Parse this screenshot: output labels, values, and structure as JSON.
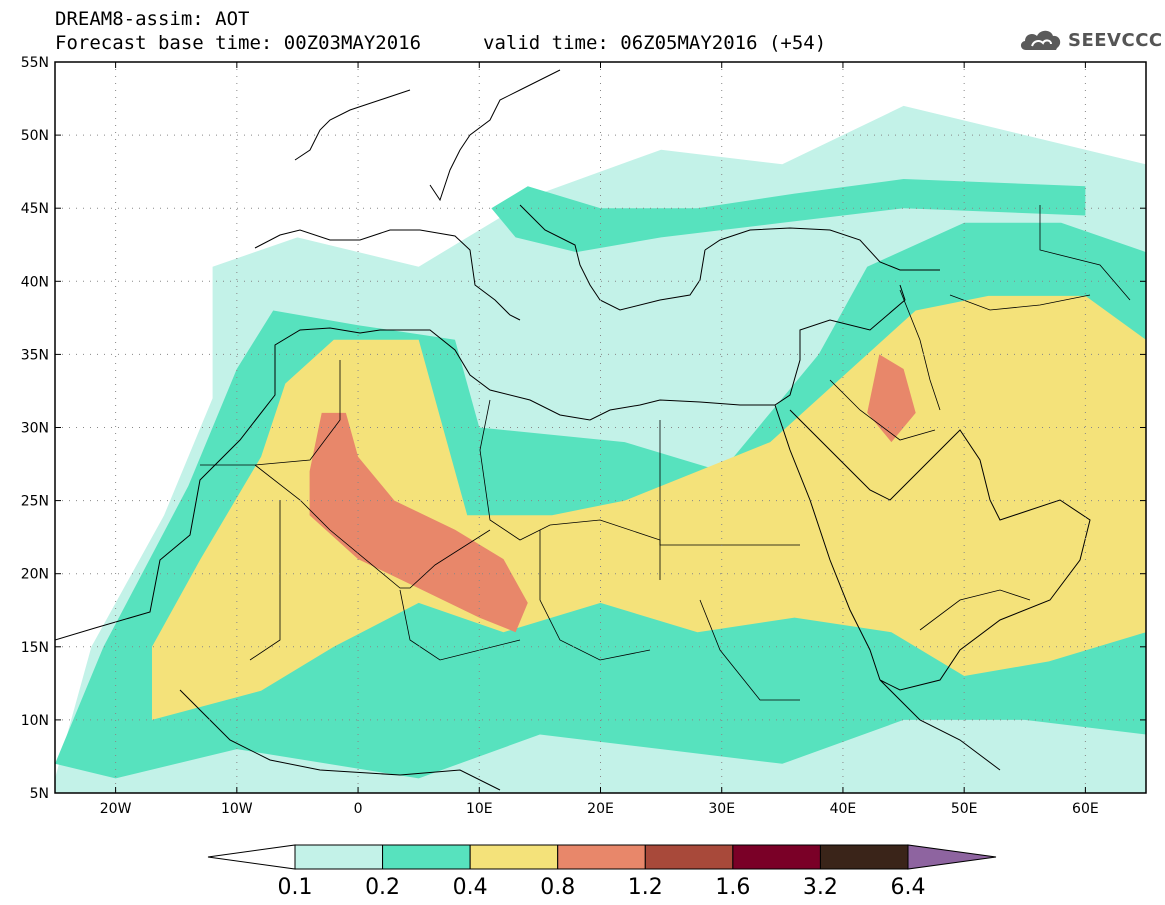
{
  "title": {
    "line1": "DREAM8-assim: AOT",
    "base_time": "Forecast base time: 00Z03MAY2016",
    "valid_time": "valid time: 06Z05MAY2016 (+54)"
  },
  "logo": {
    "text": "SEEVCCC",
    "icon": "cloud-icon"
  },
  "axes": {
    "lon_range": [
      -25,
      65
    ],
    "lat_range": [
      5,
      55
    ],
    "lat_ticks": [
      {
        "v": 55,
        "label": "55N"
      },
      {
        "v": 50,
        "label": "50N"
      },
      {
        "v": 45,
        "label": "45N"
      },
      {
        "v": 40,
        "label": "40N"
      },
      {
        "v": 35,
        "label": "35N"
      },
      {
        "v": 30,
        "label": "30N"
      },
      {
        "v": 25,
        "label": "25N"
      },
      {
        "v": 20,
        "label": "20N"
      },
      {
        "v": 15,
        "label": "15N"
      },
      {
        "v": 10,
        "label": "10N"
      },
      {
        "v": 5,
        "label": "5N"
      }
    ],
    "lon_ticks": [
      {
        "v": -20,
        "label": "20W"
      },
      {
        "v": -10,
        "label": "10W"
      },
      {
        "v": 0,
        "label": "0"
      },
      {
        "v": 10,
        "label": "10E"
      },
      {
        "v": 20,
        "label": "20E"
      },
      {
        "v": 30,
        "label": "30E"
      },
      {
        "v": 40,
        "label": "40E"
      },
      {
        "v": 50,
        "label": "50E"
      },
      {
        "v": 60,
        "label": "60E"
      }
    ],
    "grid": "dotted"
  },
  "colorbar": {
    "levels": [
      "0.1",
      "0.2",
      "0.4",
      "0.8",
      "1.2",
      "1.6",
      "3.2",
      "6.4"
    ],
    "colors": [
      "#ffffff",
      "#c3f2e8",
      "#57e2be",
      "#f4e27a",
      "#e8876a",
      "#a8493a",
      "#7a0027",
      "#3a2419",
      "#8e64a0"
    ]
  },
  "chart_data": {
    "type": "heatmap",
    "variable": "AOT",
    "title": "DREAM8-assim: AOT",
    "levels": [
      0.1,
      0.2,
      0.4,
      0.8,
      1.2,
      1.6,
      3.2,
      6.4
    ],
    "xlim": [
      -25,
      65
    ],
    "ylim": [
      5,
      55
    ],
    "regions": [
      {
        "level": 0.1,
        "points": [
          [
            -25,
            6
          ],
          [
            -22,
            15
          ],
          [
            -16,
            24
          ],
          [
            -12,
            32
          ],
          [
            -12,
            41
          ],
          [
            -5,
            43
          ],
          [
            5,
            41
          ],
          [
            15,
            46
          ],
          [
            25,
            49
          ],
          [
            35,
            48
          ],
          [
            45,
            52
          ],
          [
            55,
            50
          ],
          [
            65,
            48
          ],
          [
            65,
            5
          ],
          [
            -25,
            5
          ]
        ]
      },
      {
        "level": 0.2,
        "points": [
          [
            -25,
            7
          ],
          [
            -21,
            15
          ],
          [
            -14,
            26
          ],
          [
            -10,
            34
          ],
          [
            -7,
            38
          ],
          [
            0,
            37
          ],
          [
            8,
            36
          ],
          [
            10,
            30
          ],
          [
            22,
            29
          ],
          [
            30,
            27
          ],
          [
            38,
            35
          ],
          [
            42,
            41
          ],
          [
            50,
            44
          ],
          [
            58,
            44
          ],
          [
            65,
            42
          ],
          [
            65,
            9
          ],
          [
            55,
            10
          ],
          [
            45,
            10
          ],
          [
            35,
            7
          ],
          [
            25,
            8
          ],
          [
            15,
            9
          ],
          [
            5,
            6
          ],
          [
            -10,
            8
          ],
          [
            -20,
            6
          ]
        ]
      },
      {
        "level": 0.2,
        "points": [
          [
            11,
            45
          ],
          [
            14,
            46.5
          ],
          [
            20,
            45
          ],
          [
            28,
            45
          ],
          [
            36,
            46
          ],
          [
            45,
            47
          ],
          [
            60,
            46.5
          ],
          [
            60,
            44.5
          ],
          [
            45,
            45
          ],
          [
            35,
            44
          ],
          [
            25,
            43
          ],
          [
            18,
            42
          ],
          [
            13,
            43
          ]
        ]
      },
      {
        "level": 0.4,
        "points": [
          [
            -17,
            10
          ],
          [
            -17,
            15
          ],
          [
            -13,
            21
          ],
          [
            -8,
            28
          ],
          [
            -6,
            33
          ],
          [
            -2,
            36
          ],
          [
            5,
            36
          ],
          [
            7,
            30
          ],
          [
            9,
            24
          ],
          [
            16,
            24
          ],
          [
            22,
            25
          ],
          [
            28,
            27
          ],
          [
            34,
            29
          ],
          [
            42,
            35
          ],
          [
            46,
            38
          ],
          [
            52,
            39
          ],
          [
            60,
            39
          ],
          [
            65,
            36
          ],
          [
            65,
            16
          ],
          [
            57,
            14
          ],
          [
            50,
            13
          ],
          [
            44,
            16
          ],
          [
            36,
            17
          ],
          [
            28,
            16
          ],
          [
            20,
            18
          ],
          [
            12,
            16
          ],
          [
            5,
            18
          ],
          [
            -2,
            15
          ],
          [
            -8,
            12
          ]
        ]
      },
      {
        "level": 0.8,
        "points": [
          [
            -3,
            31
          ],
          [
            -4,
            27
          ],
          [
            -4,
            24
          ],
          [
            0,
            21
          ],
          [
            5,
            19
          ],
          [
            10,
            17
          ],
          [
            13,
            16
          ],
          [
            14,
            18
          ],
          [
            12,
            21
          ],
          [
            8,
            23
          ],
          [
            3,
            25
          ],
          [
            0,
            28
          ],
          [
            -1,
            31
          ]
        ]
      },
      {
        "level": 0.8,
        "points": [
          [
            43,
            35
          ],
          [
            42,
            31
          ],
          [
            44,
            29
          ],
          [
            46,
            31
          ],
          [
            45,
            34
          ]
        ]
      }
    ]
  }
}
